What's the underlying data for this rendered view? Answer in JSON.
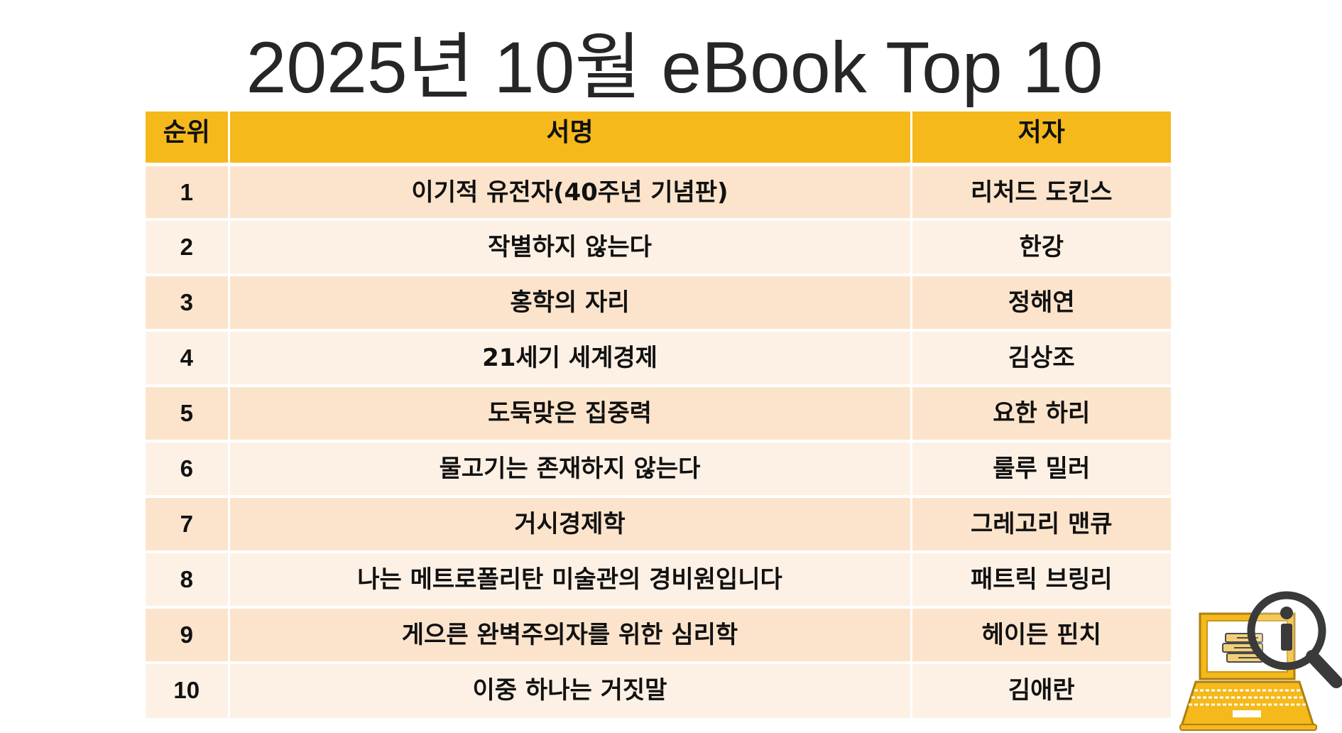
{
  "title": "2025년 10월 eBook Top 10",
  "table": {
    "headers": {
      "rank": "순위",
      "title": "서명",
      "author": "저자"
    },
    "rows": [
      {
        "rank": "1",
        "title": "이기적 유전자(40주년 기념판)",
        "author": "리처드 도킨스"
      },
      {
        "rank": "2",
        "title": "작별하지 않는다",
        "author": "한강"
      },
      {
        "rank": "3",
        "title": "홍학의 자리",
        "author": "정해연"
      },
      {
        "rank": "4",
        "title": "21세기 세계경제",
        "author": "김상조"
      },
      {
        "rank": "5",
        "title": "도둑맞은 집중력",
        "author": "요한 하리"
      },
      {
        "rank": "6",
        "title": "물고기는 존재하지 않는다",
        "author": "룰루 밀러"
      },
      {
        "rank": "7",
        "title": "거시경제학",
        "author": "그레고리 맨큐"
      },
      {
        "rank": "8",
        "title": "나는 메트로폴리탄 미술관의 경비원입니다",
        "author": "패트릭 브링리"
      },
      {
        "rank": "9",
        "title": "게으른 완벽주의자를 위한 심리학",
        "author": "헤이든 핀치"
      },
      {
        "rank": "10",
        "title": "이중 하나는 거짓말",
        "author": "김애란"
      }
    ]
  },
  "colors": {
    "header_bg": "#f5b91c",
    "row_odd_bg": "#fce4cc",
    "row_even_bg": "#fdf1e6",
    "title_text": "#262626"
  },
  "icons": {
    "corner_icon": "laptop-ebook-search-icon"
  }
}
